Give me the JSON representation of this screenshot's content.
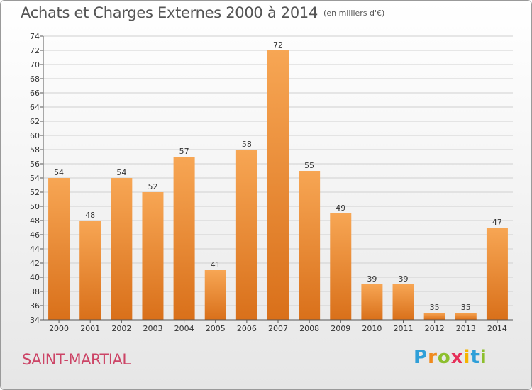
{
  "title": "Achats et Charges Externes 2000 à 2014",
  "unit": "(en milliers d'€)",
  "place": "SAINT-MARTIAL",
  "logo": {
    "letters": [
      "P",
      "r",
      "o",
      "x",
      "i",
      "t",
      "i"
    ],
    "colors": [
      "#2f9fd8",
      "#f08a1d",
      "#8dbf2e",
      "#e6305a",
      "#f5b400",
      "#2f9fd8",
      "#8dbf2e"
    ]
  },
  "colors": {
    "bar_light": "#f7a654",
    "bar_dark": "#d9701a",
    "title": "#555555",
    "place": "#cc4466"
  },
  "chart_data": {
    "type": "bar",
    "categories": [
      "2000",
      "2001",
      "2002",
      "2003",
      "2004",
      "2005",
      "2006",
      "2007",
      "2008",
      "2009",
      "2010",
      "2011",
      "2012",
      "2013",
      "2014"
    ],
    "values": [
      54,
      48,
      54,
      52,
      57,
      41,
      58,
      72,
      55,
      49,
      39,
      39,
      35,
      35,
      47
    ],
    "ylim": [
      34,
      74
    ],
    "yticks": [
      34,
      36,
      38,
      40,
      42,
      44,
      46,
      48,
      50,
      52,
      54,
      56,
      58,
      60,
      62,
      64,
      66,
      68,
      70,
      72,
      74
    ],
    "grid": true
  }
}
